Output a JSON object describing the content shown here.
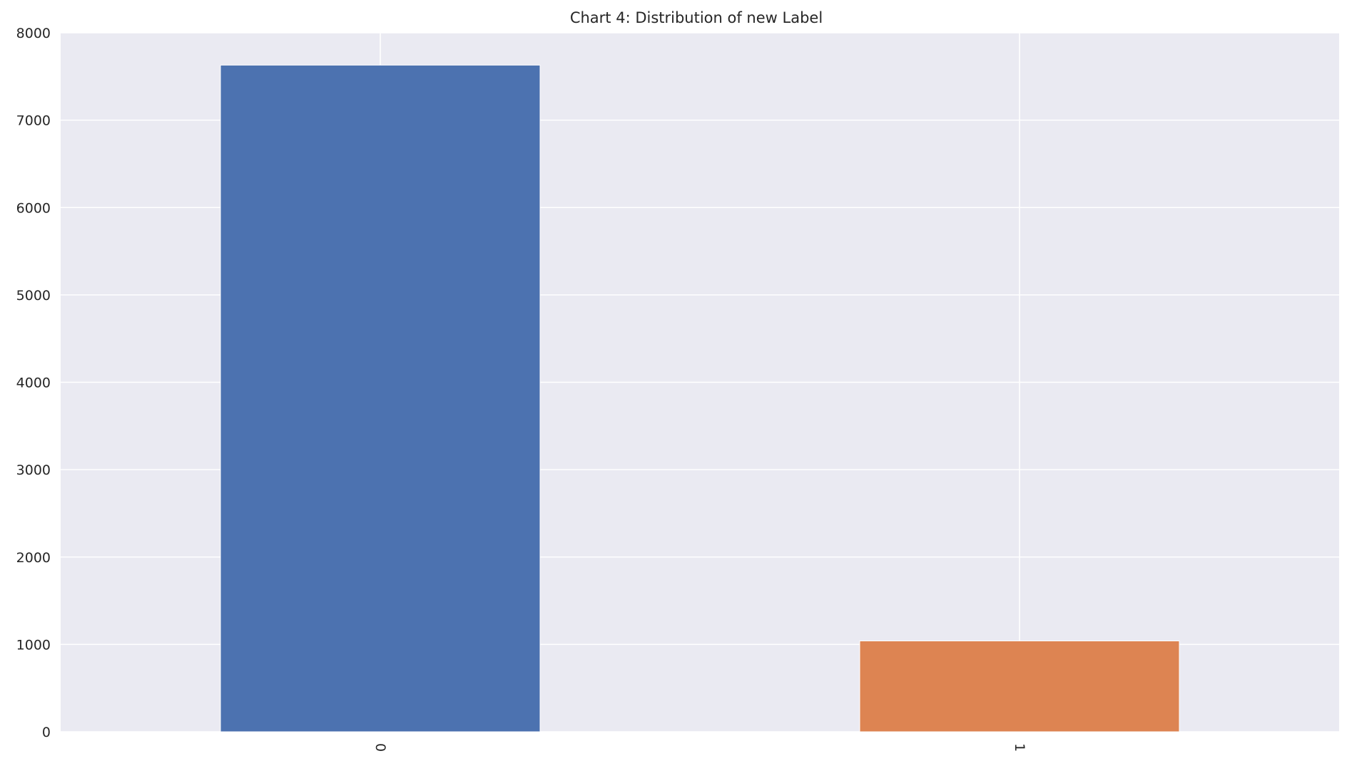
{
  "chart_data": {
    "type": "bar",
    "title": "Chart 4: Distribution of new Label",
    "xlabel": "",
    "ylabel": "",
    "categories": [
      "0",
      "1"
    ],
    "values": [
      7630,
      1040
    ],
    "ylim": [
      0,
      8000
    ],
    "yticks": [
      "0",
      "1000",
      "2000",
      "3000",
      "4000",
      "5000",
      "6000",
      "7000",
      "8000"
    ],
    "x_tick_rotation": "vertical",
    "grid": true,
    "legend": "none",
    "colors": {
      "background": "#eaeaf2",
      "grid": "#ffffff",
      "bars": [
        "#4c72b0",
        "#dd8452"
      ]
    }
  }
}
